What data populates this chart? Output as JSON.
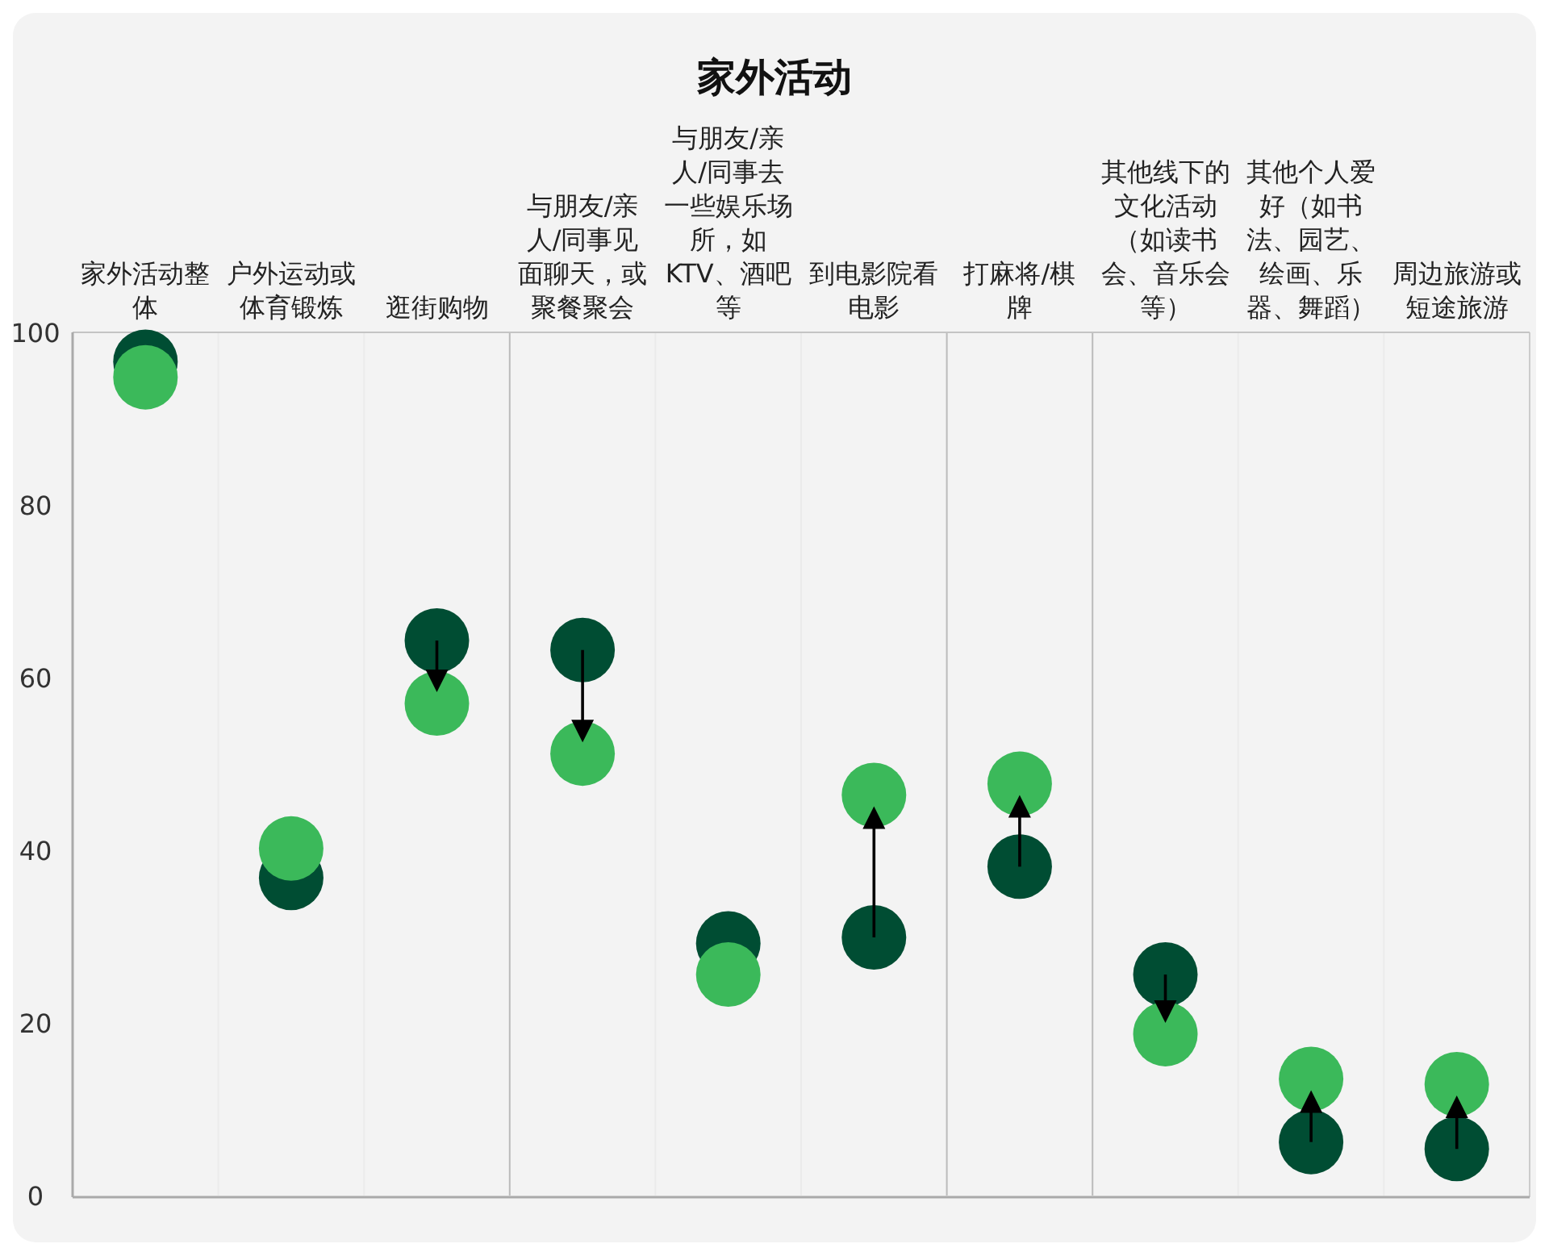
{
  "chart_data": {
    "type": "scatter",
    "title": "家外活动",
    "categories": [
      "家外活动整体",
      "户外运动或体育锻炼",
      "逛街购物",
      "与朋友/亲人/同事见面聊天，或聚餐聚会",
      "与朋友/亲人/同事去一些娱乐场所，如KTV、酒吧等",
      "到电影院看电影",
      "打麻将/棋牌",
      "其他线下的文化活动（如读书会、音乐会等）",
      "其他个人爱好（如书法、园艺、绘画、乐器、舞蹈）",
      "周边旅游或短途旅游"
    ],
    "series": [
      {
        "color": "#004d33",
        "values": [
          96.6,
          36.8,
          64.3,
          63.2,
          29.2,
          29.9,
          38.1,
          25.6,
          6.2,
          5.4
        ]
      },
      {
        "color": "#3bb95a",
        "values": [
          94.8,
          40.2,
          57.0,
          51.2,
          25.6,
          46.4,
          47.7,
          18.7,
          13.5,
          12.9
        ]
      }
    ],
    "ylim": [
      0,
      100
    ],
    "yticks": [
      0,
      20,
      40,
      60,
      80,
      100
    ],
    "marker": "circle",
    "grid": false
  }
}
